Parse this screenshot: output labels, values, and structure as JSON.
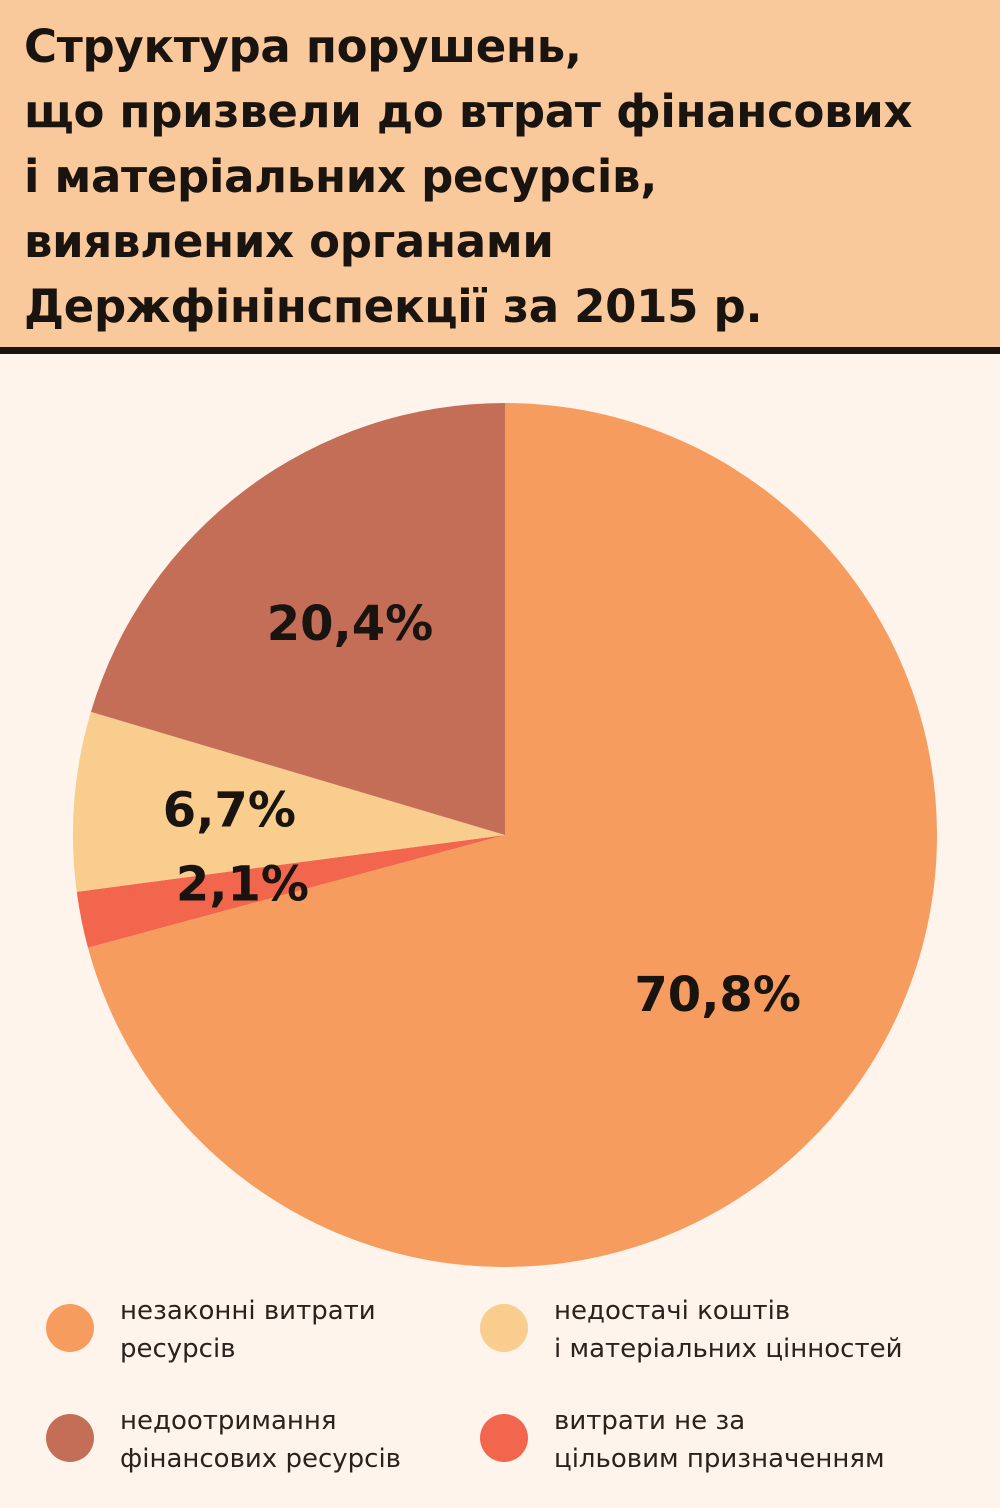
{
  "chart_data": {
    "type": "pie",
    "title": "Структура порушень,\nщо призвели до втрат фінансових\nі матеріальних ресурсів,\nвиявлених органами\nДержфінінспекції за 2015 р.",
    "slices": [
      {
        "label": "незаконні витрати\nресурсів",
        "value": 70.8,
        "display": "70,8%",
        "color": "#F79C5F"
      },
      {
        "label": "витрати не за\nцільовим призначенням",
        "value": 2.1,
        "display": "2,1%",
        "color": "#F2664E"
      },
      {
        "label": "недостачі коштів\nі матеріальних цінностей",
        "value": 6.7,
        "display": "6,7%",
        "color": "#F9CD8E"
      },
      {
        "label": "недоотримання\nфінансових ресурсів",
        "value": 20.4,
        "display": "20,4%",
        "color": "#C46E58"
      }
    ],
    "legend_position": "bottom"
  },
  "legend": {
    "items": [
      {
        "label": "незаконні витрати\nресурсів",
        "color": "#F79C5F"
      },
      {
        "label": "недостачі коштів\nі матеріальних цінностей",
        "color": "#F9CD8E"
      },
      {
        "label": "недоотримання\nфінансових ресурсів",
        "color": "#C46E58"
      },
      {
        "label": "витрати не за\nцільовим призначенням",
        "color": "#F2664E"
      }
    ]
  },
  "colors": {
    "header_background": "#F9C99C",
    "page_background": "#FEF4EB",
    "rule": "#1a1410"
  }
}
